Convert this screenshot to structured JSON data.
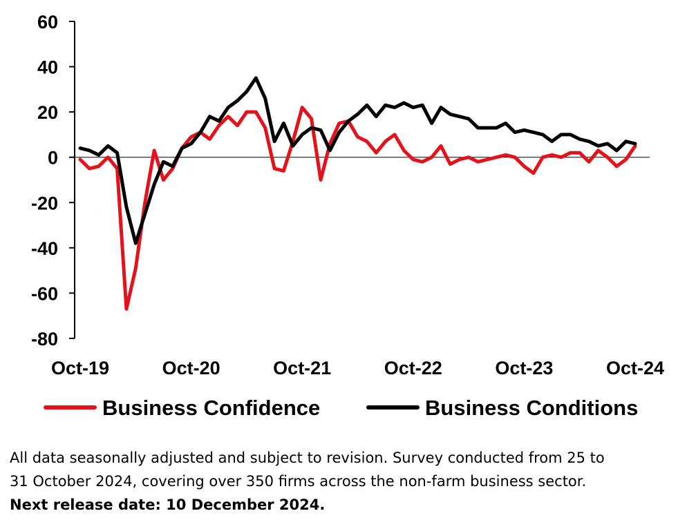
{
  "chart_data": {
    "type": "line",
    "title": "",
    "xlabel": "",
    "ylabel": "",
    "ylim": [
      -80,
      60
    ],
    "yticks": [
      60,
      40,
      20,
      0,
      -20,
      -40,
      -60,
      -80
    ],
    "x_tick_labels": [
      "Oct-19",
      "Oct-20",
      "Oct-21",
      "Oct-22",
      "Oct-23",
      "Oct-24"
    ],
    "x_tick_months": [
      "Oct-19",
      "Oct-20",
      "Oct-21",
      "Oct-22",
      "Oct-23",
      "Oct-24"
    ],
    "x": [
      "Oct-19",
      "Nov-19",
      "Dec-19",
      "Jan-20",
      "Feb-20",
      "Mar-20",
      "Apr-20",
      "May-20",
      "Jun-20",
      "Jul-20",
      "Aug-20",
      "Sep-20",
      "Oct-20",
      "Nov-20",
      "Dec-20",
      "Jan-21",
      "Feb-21",
      "Mar-21",
      "Apr-21",
      "May-21",
      "Jun-21",
      "Jul-21",
      "Aug-21",
      "Sep-21",
      "Oct-21",
      "Nov-21",
      "Dec-21",
      "Jan-22",
      "Feb-22",
      "Mar-22",
      "Apr-22",
      "May-22",
      "Jun-22",
      "Jul-22",
      "Aug-22",
      "Sep-22",
      "Oct-22",
      "Nov-22",
      "Dec-22",
      "Jan-23",
      "Feb-23",
      "Mar-23",
      "Apr-23",
      "May-23",
      "Jun-23",
      "Jul-23",
      "Aug-23",
      "Sep-23",
      "Oct-23",
      "Nov-23",
      "Dec-23",
      "Jan-24",
      "Feb-24",
      "Mar-24",
      "Apr-24",
      "May-24",
      "Jun-24",
      "Jul-24",
      "Aug-24",
      "Sep-24",
      "Oct-24"
    ],
    "grid": false,
    "legend_position": "bottom",
    "series": [
      {
        "name": "Business Confidence",
        "color": "#e3121b",
        "values": [
          -1,
          -5,
          -4,
          0,
          -5,
          -67,
          -49,
          -20,
          3,
          -10,
          -5,
          4,
          9,
          11,
          8,
          14,
          18,
          14,
          20,
          20,
          13,
          -5,
          -6,
          7,
          22,
          17,
          -10,
          6,
          15,
          16,
          9,
          7,
          2,
          7,
          10,
          3,
          -1,
          -2,
          0,
          5,
          -3,
          -1,
          0,
          -2,
          -1,
          0,
          1,
          0,
          -4,
          -7,
          0,
          1,
          0,
          2,
          2,
          -2,
          3,
          0,
          -4,
          -1,
          5
        ]
      },
      {
        "name": "Business Conditions",
        "color": "#000000",
        "values": [
          4,
          3,
          1,
          5,
          2,
          -22,
          -38,
          -25,
          -12,
          -2,
          -4,
          4,
          6,
          11,
          18,
          16,
          22,
          25,
          29,
          35,
          26,
          7,
          15,
          5,
          10,
          13,
          12,
          3,
          11,
          16,
          19,
          23,
          18,
          23,
          22,
          24,
          22,
          23,
          15,
          22,
          19,
          18,
          17,
          13,
          13,
          13,
          15,
          11,
          12,
          11,
          10,
          7,
          10,
          10,
          8,
          7,
          5,
          6,
          3,
          7,
          6
        ]
      }
    ]
  },
  "notes": {
    "line1": "All data seasonally adjusted and subject to revision. Survey conducted from 25 to",
    "line2": "31 October 2024, covering over 350 firms across the non-farm business sector.",
    "line3": "Next release date: 10 December 2024."
  }
}
